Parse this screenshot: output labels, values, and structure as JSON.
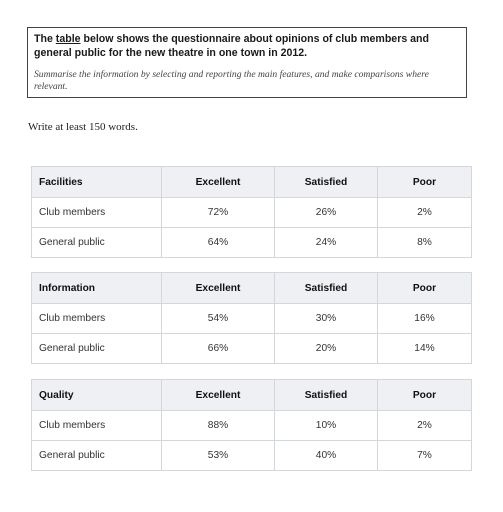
{
  "task": {
    "title_prefix": "The",
    "title_underlined": "table",
    "title_rest": "below shows the questionnaire about opinions of club members and general public for the new theatre in one town in 2012.",
    "subtitle": "Summarise the information by selecting and reporting the main features, and make comparisons where relevant."
  },
  "instruction": "Write at least 150 words.",
  "tables": [
    {
      "header": [
        "Facilities",
        "Excellent",
        "Satisfied",
        "Poor"
      ],
      "rows": [
        [
          "Club members",
          "72%",
          "26%",
          "2%"
        ],
        [
          "General public",
          "64%",
          "24%",
          "8%"
        ]
      ]
    },
    {
      "header": [
        "Information",
        "Excellent",
        "Satisfied",
        "Poor"
      ],
      "rows": [
        [
          "Club members",
          "54%",
          "30%",
          "16%"
        ],
        [
          "General public",
          "66%",
          "20%",
          "14%"
        ]
      ]
    },
    {
      "header": [
        "Quality",
        "Excellent",
        "Satisfied",
        "Poor"
      ],
      "rows": [
        [
          "Club members",
          "88%",
          "10%",
          "2%"
        ],
        [
          "General public",
          "53%",
          "40%",
          "7%"
        ]
      ]
    }
  ]
}
